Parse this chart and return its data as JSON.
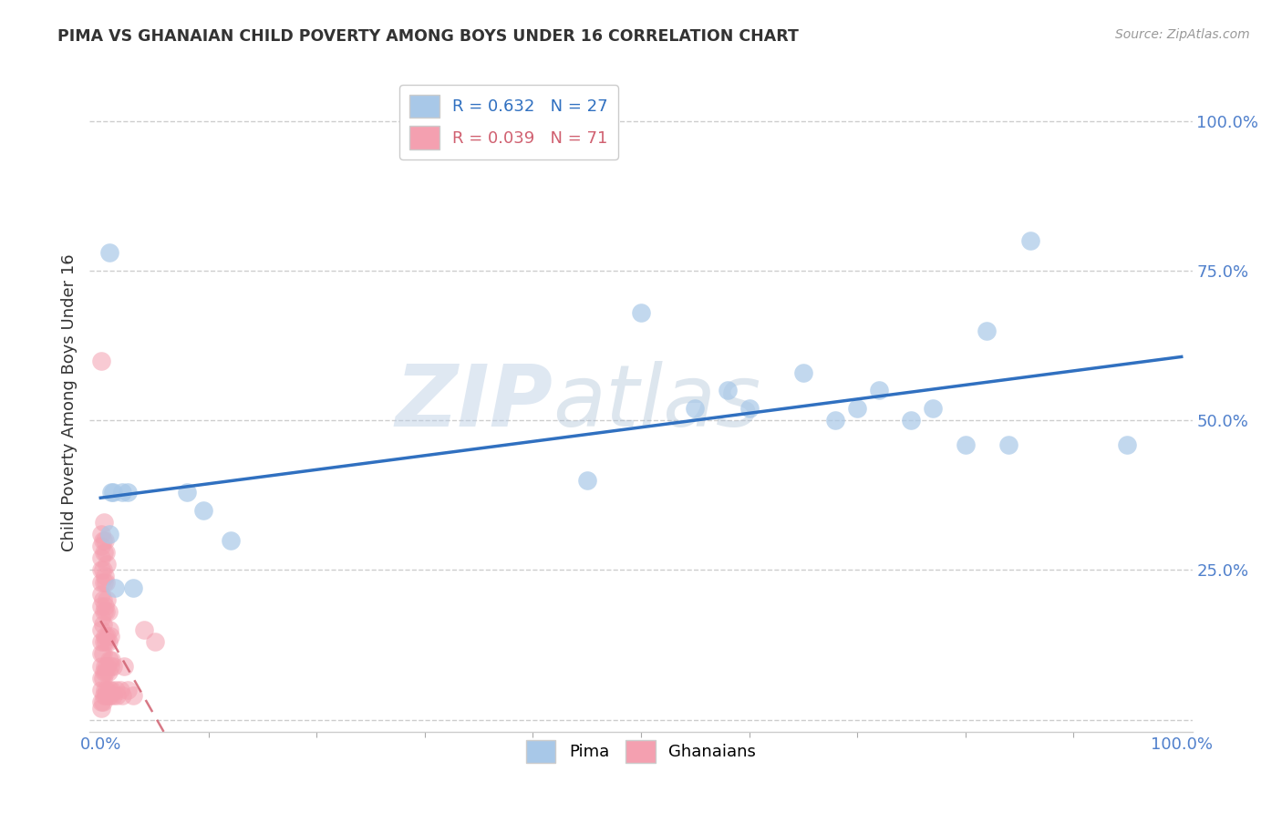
{
  "title": "PIMA VS GHANAIAN CHILD POVERTY AMONG BOYS UNDER 16 CORRELATION CHART",
  "source": "Source: ZipAtlas.com",
  "ylabel": "Child Poverty Among Boys Under 16",
  "pima_R": 0.632,
  "pima_N": 27,
  "ghanaian_R": 0.039,
  "ghanaian_N": 71,
  "pima_color": "#a8c8e8",
  "ghanaian_color": "#f4a0b0",
  "pima_line_color": "#3070c0",
  "ghanaian_line_color": "#d06070",
  "watermark_zip": "ZIP",
  "watermark_atlas": "atlas",
  "pima_points": [
    [
      0.008,
      0.78
    ],
    [
      0.008,
      0.31
    ],
    [
      0.01,
      0.38
    ],
    [
      0.012,
      0.38
    ],
    [
      0.013,
      0.22
    ],
    [
      0.02,
      0.38
    ],
    [
      0.025,
      0.38
    ],
    [
      0.03,
      0.22
    ],
    [
      0.08,
      0.38
    ],
    [
      0.095,
      0.35
    ],
    [
      0.12,
      0.3
    ],
    [
      0.45,
      0.4
    ],
    [
      0.5,
      0.68
    ],
    [
      0.55,
      0.52
    ],
    [
      0.58,
      0.55
    ],
    [
      0.6,
      0.52
    ],
    [
      0.65,
      0.58
    ],
    [
      0.68,
      0.5
    ],
    [
      0.7,
      0.52
    ],
    [
      0.72,
      0.55
    ],
    [
      0.75,
      0.5
    ],
    [
      0.77,
      0.52
    ],
    [
      0.8,
      0.46
    ],
    [
      0.82,
      0.65
    ],
    [
      0.84,
      0.46
    ],
    [
      0.86,
      0.8
    ],
    [
      0.95,
      0.46
    ]
  ],
  "ghanaian_points": [
    [
      0.001,
      0.02
    ],
    [
      0.001,
      0.03
    ],
    [
      0.001,
      0.05
    ],
    [
      0.001,
      0.07
    ],
    [
      0.001,
      0.09
    ],
    [
      0.001,
      0.11
    ],
    [
      0.001,
      0.13
    ],
    [
      0.001,
      0.15
    ],
    [
      0.001,
      0.17
    ],
    [
      0.001,
      0.19
    ],
    [
      0.001,
      0.21
    ],
    [
      0.001,
      0.23
    ],
    [
      0.001,
      0.25
    ],
    [
      0.001,
      0.27
    ],
    [
      0.001,
      0.29
    ],
    [
      0.001,
      0.31
    ],
    [
      0.001,
      0.6
    ],
    [
      0.002,
      0.03
    ],
    [
      0.002,
      0.07
    ],
    [
      0.002,
      0.11
    ],
    [
      0.002,
      0.16
    ],
    [
      0.002,
      0.2
    ],
    [
      0.002,
      0.25
    ],
    [
      0.002,
      0.3
    ],
    [
      0.003,
      0.04
    ],
    [
      0.003,
      0.08
    ],
    [
      0.003,
      0.13
    ],
    [
      0.003,
      0.18
    ],
    [
      0.003,
      0.23
    ],
    [
      0.003,
      0.28
    ],
    [
      0.003,
      0.33
    ],
    [
      0.004,
      0.05
    ],
    [
      0.004,
      0.09
    ],
    [
      0.004,
      0.14
    ],
    [
      0.004,
      0.19
    ],
    [
      0.004,
      0.24
    ],
    [
      0.004,
      0.3
    ],
    [
      0.005,
      0.04
    ],
    [
      0.005,
      0.08
    ],
    [
      0.005,
      0.13
    ],
    [
      0.005,
      0.18
    ],
    [
      0.005,
      0.23
    ],
    [
      0.005,
      0.28
    ],
    [
      0.006,
      0.05
    ],
    [
      0.006,
      0.09
    ],
    [
      0.006,
      0.14
    ],
    [
      0.006,
      0.2
    ],
    [
      0.006,
      0.26
    ],
    [
      0.007,
      0.04
    ],
    [
      0.007,
      0.08
    ],
    [
      0.007,
      0.13
    ],
    [
      0.007,
      0.18
    ],
    [
      0.008,
      0.05
    ],
    [
      0.008,
      0.1
    ],
    [
      0.008,
      0.15
    ],
    [
      0.009,
      0.04
    ],
    [
      0.009,
      0.09
    ],
    [
      0.009,
      0.14
    ],
    [
      0.01,
      0.05
    ],
    [
      0.01,
      0.1
    ],
    [
      0.012,
      0.04
    ],
    [
      0.012,
      0.09
    ],
    [
      0.014,
      0.05
    ],
    [
      0.015,
      0.04
    ],
    [
      0.018,
      0.05
    ],
    [
      0.02,
      0.04
    ],
    [
      0.022,
      0.09
    ],
    [
      0.025,
      0.05
    ],
    [
      0.03,
      0.04
    ],
    [
      0.04,
      0.15
    ],
    [
      0.05,
      0.13
    ]
  ],
  "xlim": [
    -0.01,
    1.01
  ],
  "ylim": [
    -0.02,
    1.08
  ],
  "xtick_positions": [
    0.0,
    1.0
  ],
  "xtick_labels": [
    "0.0%",
    "100.0%"
  ],
  "ytick_positions": [
    0.0,
    0.25,
    0.5,
    0.75,
    1.0
  ],
  "ytick_labels": [
    "",
    "25.0%",
    "50.0%",
    "75.0%",
    "100.0%"
  ],
  "grid_color": "#c8c8c8",
  "background_color": "#ffffff",
  "tick_color": "#5080cc"
}
